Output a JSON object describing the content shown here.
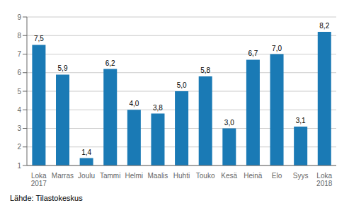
{
  "chart_data": {
    "type": "bar",
    "categories": [
      "Loka\n2017",
      "Marras",
      "Joulu",
      "Tammi",
      "Helmi",
      "Maalis",
      "Huhti",
      "Touko",
      "Kesä",
      "Heinä",
      "Elo",
      "Syys",
      "Loka\n2018"
    ],
    "values": [
      7.5,
      5.9,
      1.4,
      6.2,
      4.0,
      3.8,
      5.0,
      5.8,
      3.0,
      6.7,
      7.0,
      3.1,
      8.2
    ],
    "value_labels": [
      "7,5",
      "5,9",
      "1,4",
      "6,2",
      "4,0",
      "3,8",
      "5,0",
      "5,8",
      "3,0",
      "6,7",
      "7,0",
      "3,1",
      "8,2"
    ],
    "data_labels": true,
    "color": "#1a7ab5",
    "ylim": [
      1,
      9
    ],
    "yticks": [
      1,
      2,
      3,
      4,
      5,
      6,
      7,
      8,
      9
    ],
    "grid": true,
    "annotations": [
      "Lähde: Tilastokeskus"
    ]
  }
}
